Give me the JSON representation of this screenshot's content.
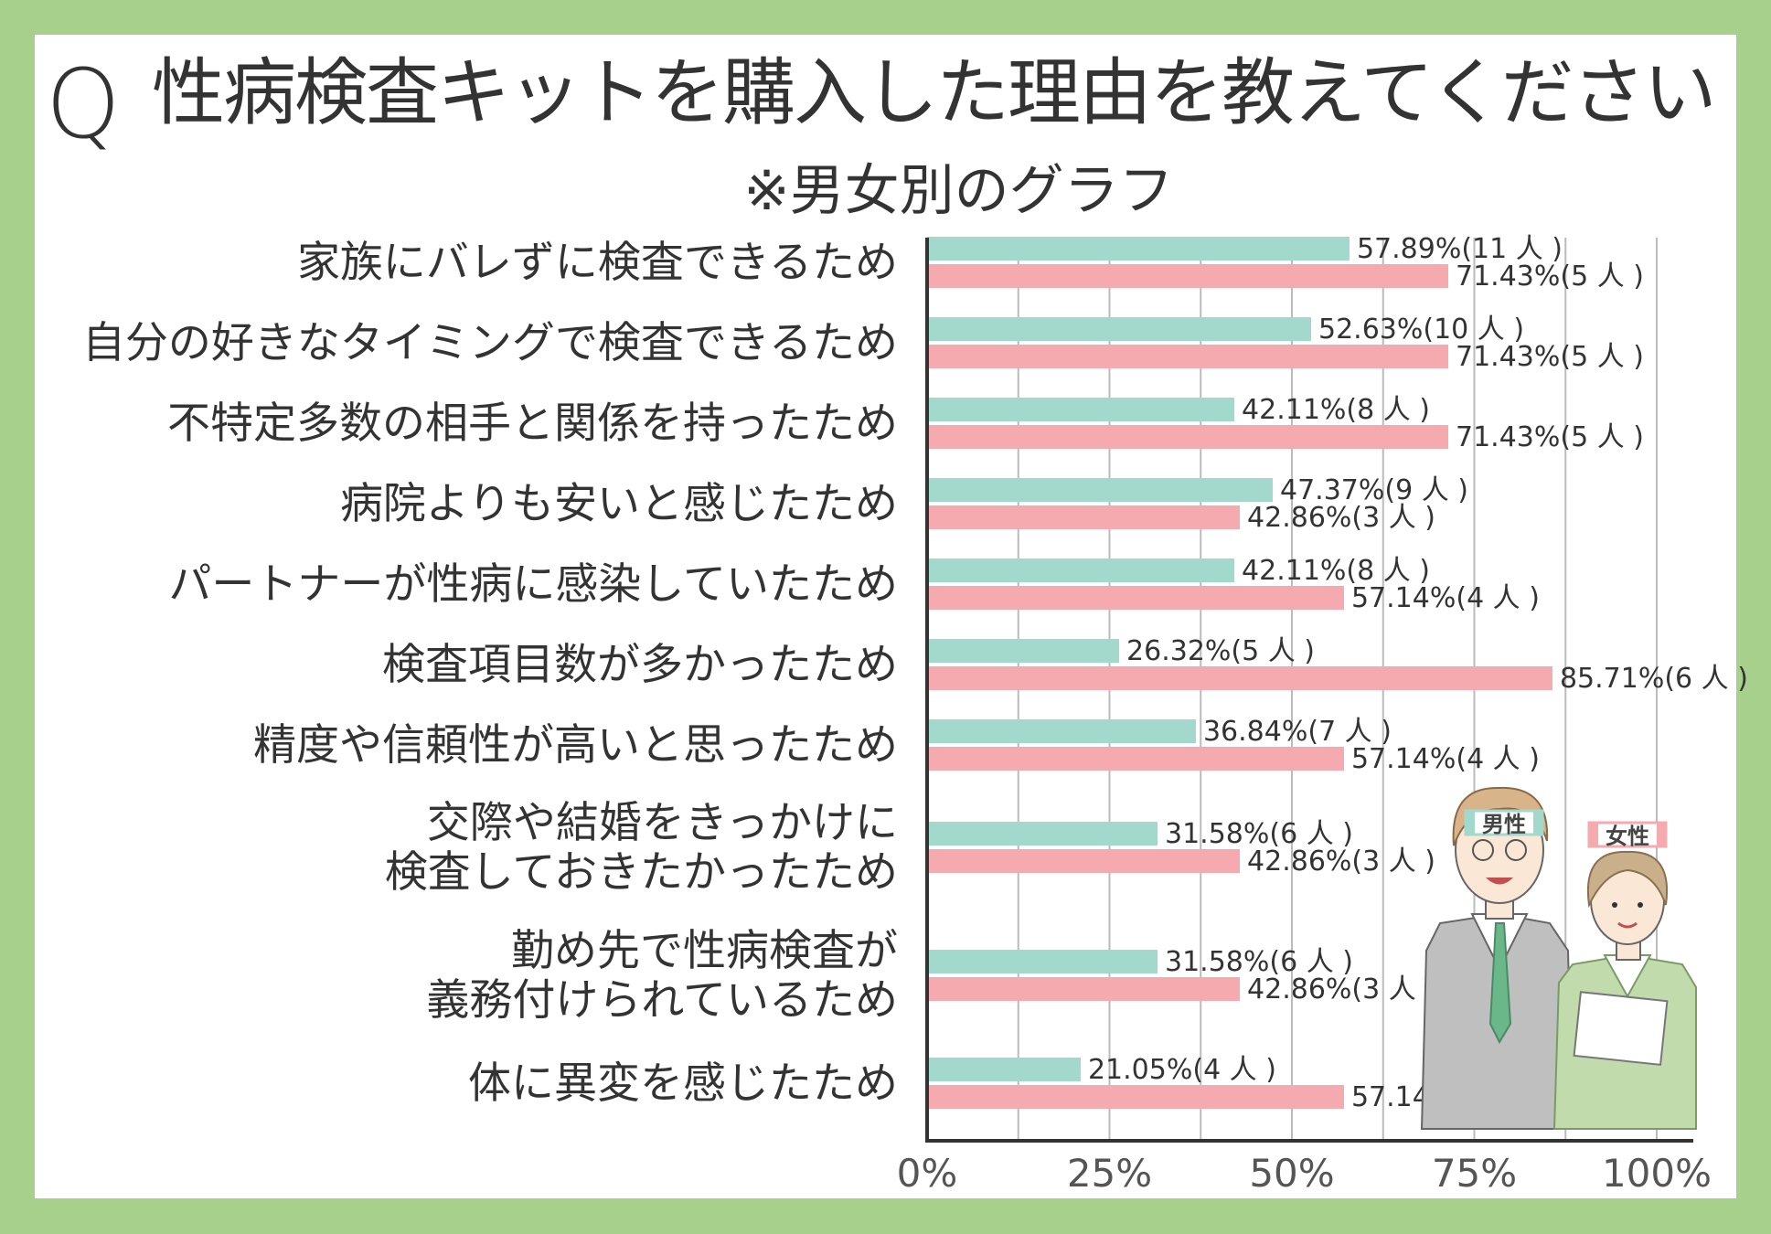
{
  "header": {
    "q_mark": "Q",
    "title": "性病検査キットを購入した理由を教えてください",
    "subtitle": "※男女別のグラフ"
  },
  "legend": {
    "male": "男性",
    "female": "女性"
  },
  "colors": {
    "male": "#a3d9cc",
    "female": "#f4aaaf",
    "background": "#a8d08d",
    "grid": "#bbbbbb",
    "axis": "#333333"
  },
  "chart_data": {
    "type": "bar",
    "orientation": "horizontal",
    "categories": [
      [
        "家族にバレずに検査できるため"
      ],
      [
        "自分の好きなタイミングで検査できるため"
      ],
      [
        "不特定多数の相手と関係を持ったため"
      ],
      [
        "病院よりも安いと感じたため"
      ],
      [
        "パートナーが性病に感染していたため"
      ],
      [
        "検査項目数が多かったため"
      ],
      [
        "精度や信頼性が高いと思ったため"
      ],
      [
        "交際や結婚をきっかけに",
        "検査しておきたかったため"
      ],
      [
        "勤め先で性病検査が",
        "義務付けられているため"
      ],
      [
        "体に異変を感じたため"
      ]
    ],
    "series": [
      {
        "name": "男性",
        "values": [
          57.89,
          52.63,
          42.11,
          47.37,
          42.11,
          26.32,
          36.84,
          31.58,
          31.58,
          21.05
        ],
        "labels": [
          "57.89%(11 人 )",
          "52.63%(10 人 )",
          "42.11%(8 人 )",
          "47.37%(9 人 )",
          "42.11%(8 人 )",
          "26.32%(5 人 )",
          "36.84%(7 人 )",
          "31.58%(6 人 )",
          "31.58%(6 人 )",
          "21.05%(4 人 )"
        ]
      },
      {
        "name": "女性",
        "values": [
          71.43,
          71.43,
          71.43,
          42.86,
          57.14,
          85.71,
          57.14,
          42.86,
          42.86,
          57.14
        ],
        "labels": [
          "71.43%(5 人 )",
          "71.43%(5 人 )",
          "71.43%(5 人 )",
          "42.86%(3 人 )",
          "57.14%(4 人 )",
          "85.71%(6 人 )",
          "57.14%(4 人 )",
          "42.86%(3 人 )",
          "42.86%(3 人 )",
          "57.14%(4 人 )"
        ]
      }
    ],
    "xlim": [
      0,
      100
    ],
    "ticks": [
      "0%",
      "25%",
      "50%",
      "75%",
      "100%"
    ],
    "grid": true
  }
}
